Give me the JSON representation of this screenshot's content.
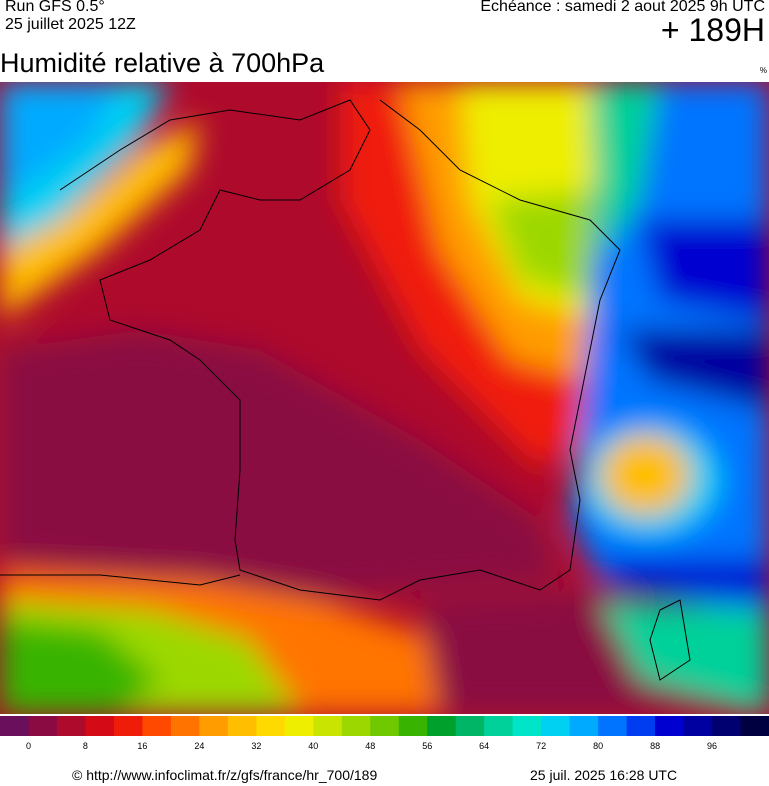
{
  "header": {
    "run": "Run GFS 0.5°",
    "run_date": "25 juillet 2025 12Z",
    "valid": "Echéance : samedi 2 aout 2025 9h UTC",
    "lead": "+ 189H"
  },
  "title": "Humidité relative à 700hPa",
  "unit": "%",
  "colorbar": {
    "lim": [
      -4,
      104
    ],
    "ticks": [
      0,
      8,
      16,
      24,
      32,
      40,
      48,
      56,
      64,
      72,
      80,
      88,
      96
    ],
    "colors": [
      "#6a0f5c",
      "#8a0a42",
      "#ae0a2c",
      "#d40a16",
      "#f01c0a",
      "#ff4800",
      "#ff7400",
      "#ff9c00",
      "#ffbe00",
      "#ffda00",
      "#eeee00",
      "#c8e400",
      "#9cd800",
      "#70c800",
      "#38b400",
      "#00a02c",
      "#00b666",
      "#00d09a",
      "#00e4c8",
      "#00d0f2",
      "#00aaff",
      "#0074ff",
      "#003cf0",
      "#0000d0",
      "#0000a0",
      "#000070",
      "#000040"
    ]
  },
  "footer": {
    "url": "© http://www.infoclimat.fr/z/gfs/france/hr_700/189",
    "generated": "25 juil. 2025 16:28 UTC"
  }
}
